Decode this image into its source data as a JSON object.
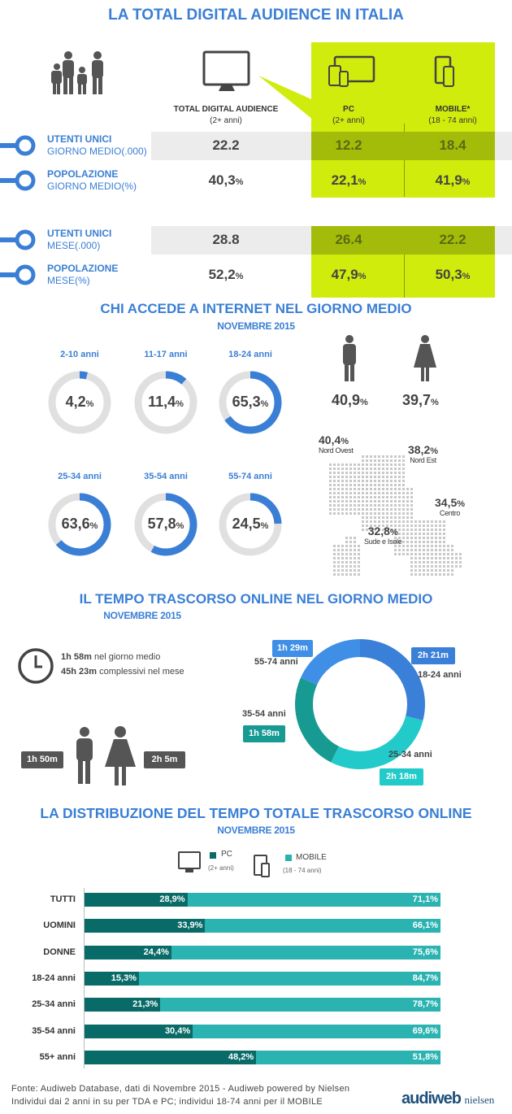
{
  "section1": {
    "title": "LA TOTAL DIGITAL AUDIENCE IN ITALIA",
    "columns": [
      {
        "label": "TOTAL DIGITAL AUDIENCE",
        "sub": "(2+ anni)"
      },
      {
        "label": "PC",
        "sub": "(2+ anni)"
      },
      {
        "label": "MOBILE*",
        "sub": "(18 - 74 anni)"
      }
    ],
    "rows": [
      {
        "label1": "UTENTI UNICI",
        "label2": "GIORNO  MEDIO(.000)",
        "values": [
          "22.2",
          "12.2",
          "18.4"
        ],
        "unit": ""
      },
      {
        "label1": "POPOLAZIONE",
        "label2": "GIORNO  MEDIO(%)",
        "values": [
          "40,3",
          "22,1",
          "41,9"
        ],
        "unit": "%"
      },
      {
        "label1": "UTENTI UNICI",
        "label2": "MESE(.000)",
        "values": [
          "28.8",
          "26.4",
          "22.2"
        ],
        "unit": ""
      },
      {
        "label1": "POPOLAZIONE",
        "label2": "MESE(%)",
        "values": [
          "52,2",
          "47,9",
          "50,3"
        ],
        "unit": "%"
      }
    ],
    "colors": {
      "accent_blue": "#3a7fd5",
      "highlight_green": "#cfec0c",
      "dark_green": "#a3bc0a"
    }
  },
  "section2": {
    "title": "CHI ACCEDE A INTERNET NEL GIORNO MEDIO",
    "subtitle": "NOVEMBRE 2015",
    "unit": "%",
    "gender": [
      {
        "icon": "man-icon",
        "value": "40,9"
      },
      {
        "icon": "woman-icon",
        "value": "39,7"
      }
    ],
    "regions": [
      {
        "name": "Nord Ovest",
        "value": "40,4"
      },
      {
        "name": "Nord Est",
        "value": "38,2"
      },
      {
        "name": "Centro",
        "value": "34,5"
      },
      {
        "name": "Sude e Isole",
        "value": "32,8"
      }
    ]
  },
  "section3": {
    "title": "IL TEMPO TRASCORSO ONLINE NEL GIORNO MEDIO",
    "subtitle": "NOVEMBRE 2015",
    "daily_value": "1h 58m",
    "daily_text": "nel giorno medio",
    "monthly_value": "45h 23m",
    "monthly_text": "complessivi  nel mese",
    "men": "1h 50m",
    "women": "2h 5m"
  },
  "section4": {
    "title": "LA DISTRIBUZIONE DEL TEMPO TOTALE TRASCORSO ONLINE",
    "subtitle": "NOVEMBRE 2015",
    "legend": [
      {
        "name": "PC",
        "sub": "(2+ anni)",
        "color": "#096b68"
      },
      {
        "name": "MOBILE",
        "sub": "(18 - 74 anni)",
        "color": "#2bb3b1"
      }
    ]
  },
  "footer": {
    "line1": "Fonte: Audiweb Database, dati di Novembre 2015 - Audiweb powered by Nielsen",
    "line2": "Individui dai 2 anni in su   per TDA e PC; individui 18-74 anni per il MOBILE",
    "logo": "audiweb powered by nielsen"
  },
  "chart_data": [
    {
      "type": "pie",
      "variant": "donut",
      "categories": [
        "2-10 anni",
        "11-17 anni",
        "18-24 anni",
        "25-34 anni",
        "35-54 anni",
        "55-74 anni"
      ],
      "values": [
        4.2,
        11.4,
        65.3,
        63.6,
        57.8,
        24.5
      ],
      "labels": [
        "4,2",
        "11,4",
        "65,3",
        "63,6",
        "57,8",
        "24,5"
      ],
      "unit": "%",
      "colors": {
        "fill": "#3a7fd5",
        "track": "#e0e0e0"
      }
    },
    {
      "type": "pie",
      "variant": "donut",
      "categories": [
        "18-24 anni",
        "25-34 anni",
        "35-54 anni",
        "55-74 anni"
      ],
      "values_minutes": [
        141,
        138,
        118,
        89
      ],
      "labels": [
        "2h 21m",
        "2h 18m",
        "1h 58m",
        "1h 29m"
      ],
      "colors": [
        "#3a7fd8",
        "#22caca",
        "#179a92",
        "#3f8fe6"
      ]
    },
    {
      "type": "bar",
      "orientation": "horizontal",
      "stacked": true,
      "categories": [
        "TUTTI",
        "UOMINI",
        "DONNE",
        "18-24 anni",
        "25-34 anni",
        "35-54 anni",
        "55+ anni"
      ],
      "series": [
        {
          "name": "PC",
          "values": [
            28.9,
            33.9,
            24.4,
            15.3,
            21.3,
            30.4,
            48.2
          ],
          "labels": [
            "28,9%",
            "33,9%",
            "24,4%",
            "15,3%",
            "21,3%",
            "30,4%",
            "48,2%"
          ]
        },
        {
          "name": "MOBILE",
          "values": [
            71.1,
            66.1,
            75.6,
            84.7,
            78.7,
            69.6,
            51.8
          ],
          "labels": [
            "71,1%",
            "66,1%",
            "75,6%",
            "84,7%",
            "78,7%",
            "69,6%",
            "51,8%"
          ]
        }
      ],
      "xlim": [
        0,
        100
      ]
    }
  ]
}
